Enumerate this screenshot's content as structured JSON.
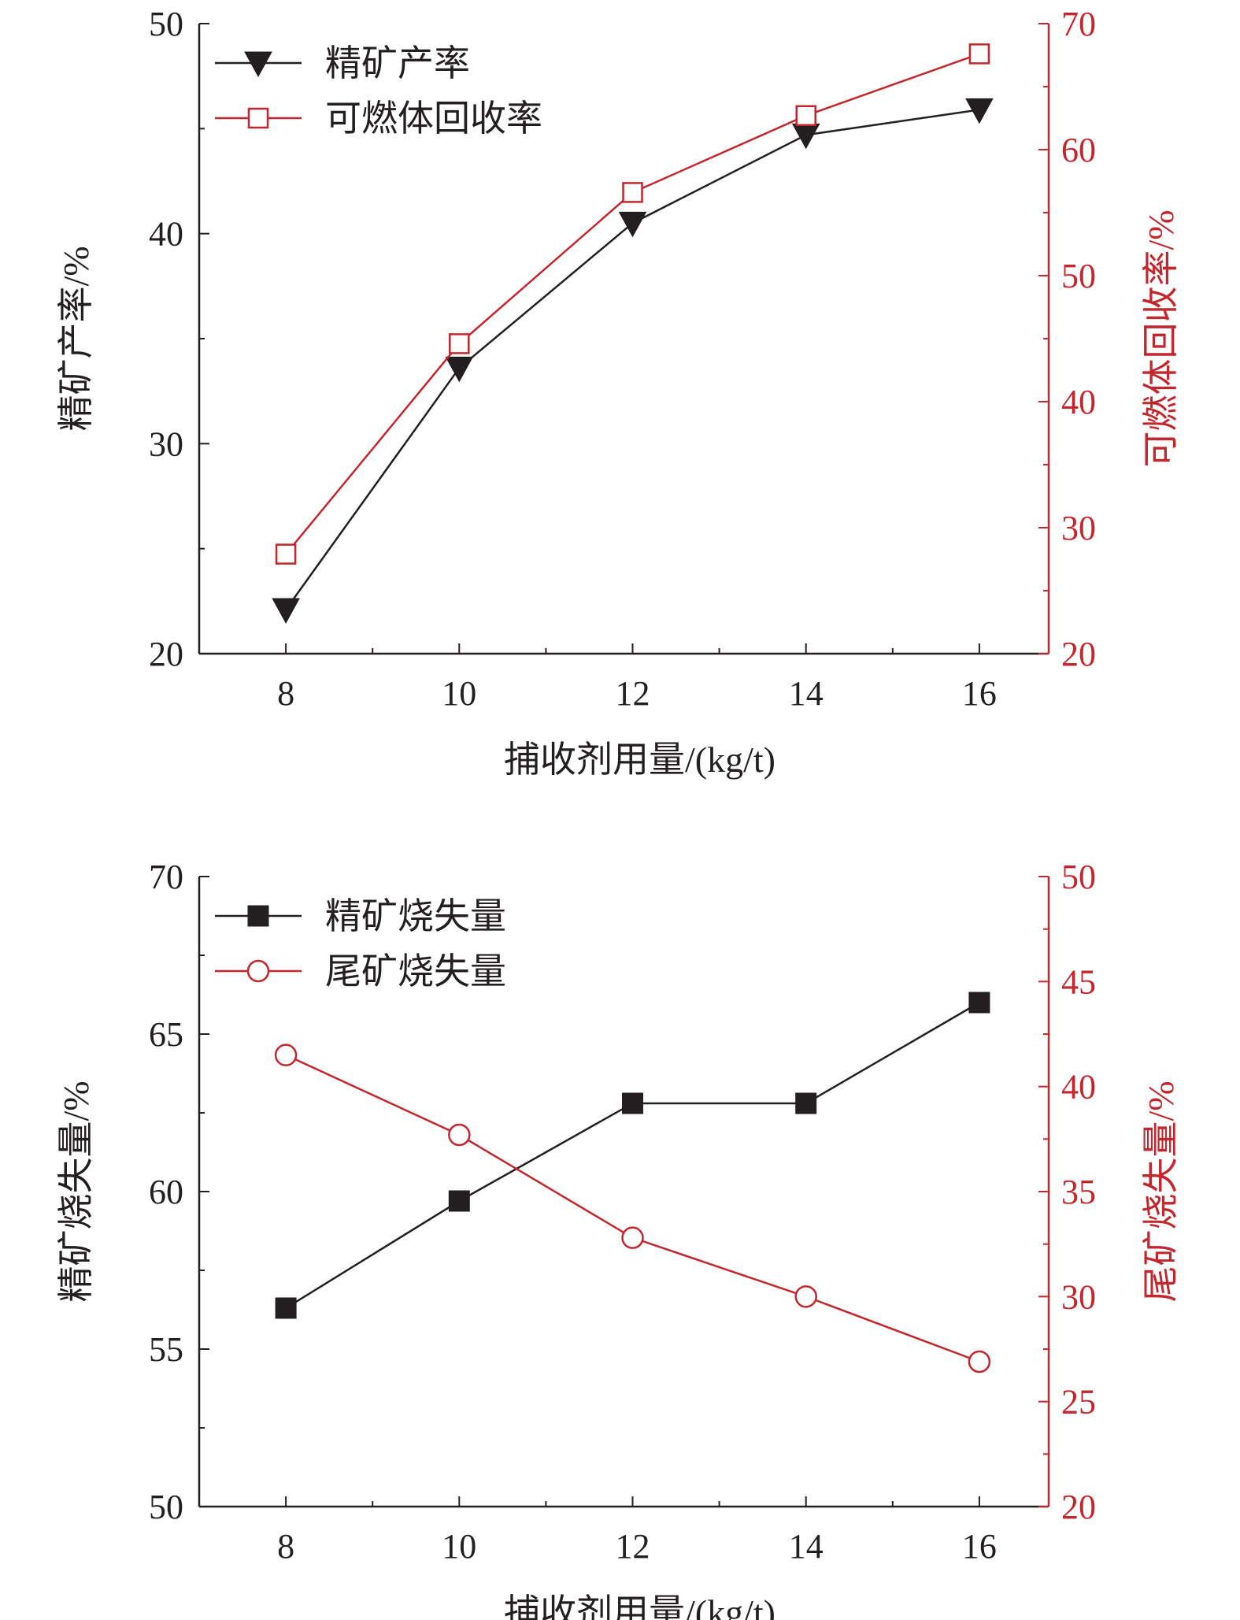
{
  "colors": {
    "black": "#231f20",
    "red": "#c1272d"
  },
  "chart_data": [
    {
      "type": "line",
      "xlabel": "捕收剂用量/(kg/t)",
      "ylabel_left": "精矿产率/%",
      "ylabel_right": "可燃体回收率/%",
      "x": [
        8,
        10,
        12,
        14,
        16
      ],
      "xlim": [
        7,
        16.8
      ],
      "x_ticks": [
        "8",
        "10",
        "12",
        "14",
        "16"
      ],
      "ylim_left": [
        20,
        50
      ],
      "ylim_right": [
        20,
        70
      ],
      "y_ticks_left": [
        "20",
        "30",
        "40",
        "50"
      ],
      "y_ticks_right": [
        "20",
        "30",
        "40",
        "50",
        "60",
        "70"
      ],
      "legend_position": "top-left",
      "series": [
        {
          "name": "精矿产率",
          "axis": "left",
          "color": "#231f20",
          "marker": "triangle-down",
          "values": [
            22.1,
            33.6,
            40.5,
            44.7,
            45.9
          ]
        },
        {
          "name": "可燃体回收率",
          "axis": "right",
          "color": "#c1272d",
          "marker": "square-open",
          "values": [
            27.9,
            44.6,
            56.6,
            62.7,
            67.6
          ]
        }
      ]
    },
    {
      "type": "line",
      "xlabel": "捕收剂用量/(kg/t)",
      "ylabel_left": "精矿烧失量/%",
      "ylabel_right": "尾矿烧失量/%",
      "x": [
        8,
        10,
        12,
        14,
        16
      ],
      "xlim": [
        7,
        16.8
      ],
      "x_ticks": [
        "8",
        "10",
        "12",
        "14",
        "16"
      ],
      "ylim_left": [
        50,
        70
      ],
      "ylim_right": [
        20,
        50
      ],
      "y_ticks_left": [
        "50",
        "55",
        "60",
        "65",
        "70"
      ],
      "y_ticks_right": [
        "20",
        "25",
        "30",
        "35",
        "40",
        "45",
        "50"
      ],
      "legend_position": "top-left",
      "series": [
        {
          "name": "精矿烧失量",
          "axis": "left",
          "color": "#231f20",
          "marker": "square-filled",
          "values": [
            56.3,
            59.7,
            62.8,
            62.8,
            66.0
          ]
        },
        {
          "name": "尾矿烧失量",
          "axis": "right",
          "color": "#c1272d",
          "marker": "circle-open",
          "values": [
            41.5,
            37.7,
            32.8,
            30.0,
            26.9
          ]
        }
      ]
    }
  ]
}
